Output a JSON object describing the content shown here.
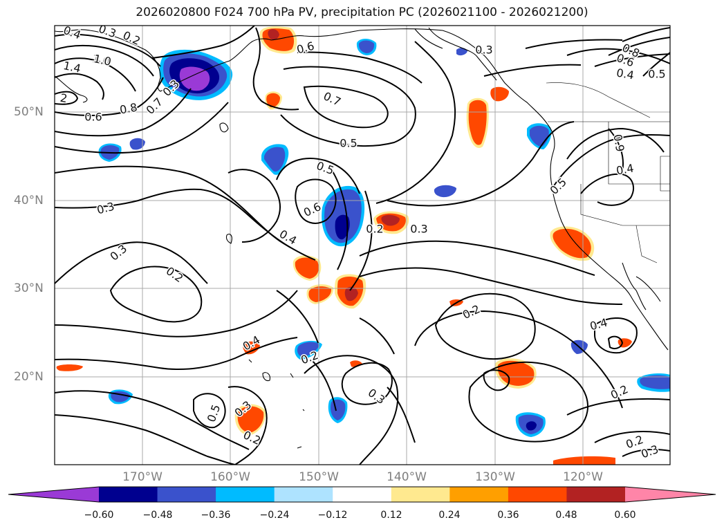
{
  "title": "2026020800 F024 700 hPa PV, precipitation PC (2026021100 - 2026021200)",
  "lat_labels": [
    "50°N",
    "40°N",
    "30°N",
    "20°N"
  ],
  "lon_labels": [
    "170°W",
    "160°W",
    "150°W",
    "140°W",
    "130°W",
    "120°W"
  ],
  "colorbar": {
    "ticks": [
      "−0.60",
      "−0.48",
      "−0.36",
      "−0.24",
      "−0.12",
      "0.12",
      "0.24",
      "0.36",
      "0.48",
      "0.60"
    ],
    "colors": [
      "#9a3ad6",
      "#00008f",
      "#3a52cc",
      "#00bbff",
      "#aee3ff",
      "#ffffff",
      "#ffe98f",
      "#ff9f00",
      "#ff4800",
      "#b22222",
      "#ff85a8"
    ]
  },
  "contour_labels": [
    {
      "text": "0.4"
    },
    {
      "text": "0.3"
    },
    {
      "text": "0.2"
    },
    {
      "text": "1.0"
    },
    {
      "text": "1.4"
    },
    {
      "text": "2"
    },
    {
      "text": "0.6"
    },
    {
      "text": "0.8"
    },
    {
      "text": "0.7"
    },
    {
      "text": "0.3"
    },
    {
      "text": "0.6"
    },
    {
      "text": "0.7"
    },
    {
      "text": "0.5"
    },
    {
      "text": "0.5"
    },
    {
      "text": "0.6"
    },
    {
      "text": "0.4"
    },
    {
      "text": "0.2"
    },
    {
      "text": "0.3"
    },
    {
      "text": "0.3"
    },
    {
      "text": "0.2"
    },
    {
      "text": "0.3"
    },
    {
      "text": "0.3"
    },
    {
      "text": "1.0"
    },
    {
      "text": "0.8"
    },
    {
      "text": "0.6"
    },
    {
      "text": "0.4"
    },
    {
      "text": "0.5"
    },
    {
      "text": "0.9"
    },
    {
      "text": "0.4"
    },
    {
      "text": "0.5"
    },
    {
      "text": "0.2"
    },
    {
      "text": "0.4"
    },
    {
      "text": "0.2"
    },
    {
      "text": "0.4"
    },
    {
      "text": "0.2"
    },
    {
      "text": "0.3"
    },
    {
      "text": "0.5"
    },
    {
      "text": "0.3"
    },
    {
      "text": "0.2"
    },
    {
      "text": "0.2"
    },
    {
      "text": "0.3"
    }
  ]
}
